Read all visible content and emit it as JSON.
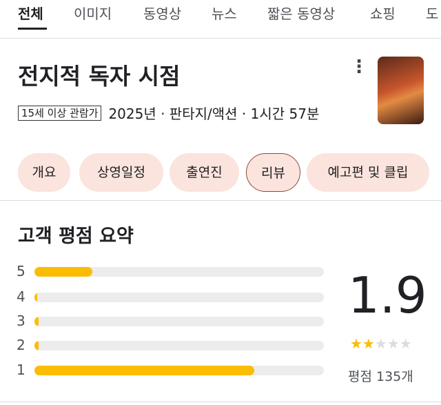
{
  "tabs": [
    "전체",
    "이미지",
    "동영상",
    "뉴스",
    "짧은 동영상",
    "쇼핑",
    "도"
  ],
  "title": "전지적 독자 시점",
  "age_rating": "15세 이상 관람가",
  "info": "2025년 · 판타지/액션 · 1시간 57분",
  "buttons": [
    "개요",
    "상영일정",
    "출연진",
    "리뷰",
    "예고편 및 클립"
  ],
  "selected_button": 3,
  "rating_summary": {
    "title": "고객 평점 요약",
    "histogram": {
      "categories": [
        "5",
        "4",
        "3",
        "2",
        "1"
      ],
      "values": [
        20,
        1,
        1.5,
        1.5,
        76
      ],
      "max": 100,
      "color": "#fbbc04"
    },
    "score": 1.9,
    "star_max": 5,
    "count_label": "평점 135개"
  }
}
